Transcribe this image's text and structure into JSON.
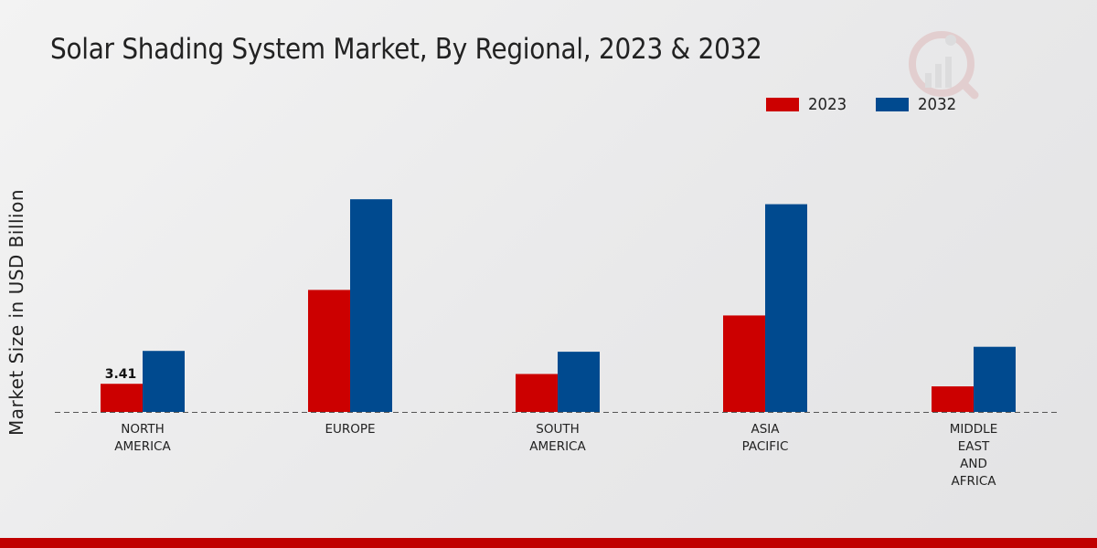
{
  "chart_data": {
    "type": "bar",
    "title": "Solar Shading System Market, By Regional, 2023 & 2032",
    "ylabel": "Market Size in USD Billion",
    "xlabel": "",
    "categories": [
      [
        "NORTH",
        "AMERICA"
      ],
      [
        "EUROPE"
      ],
      [
        "SOUTH",
        "AMERICA"
      ],
      [
        "ASIA",
        "PACIFIC"
      ],
      [
        "MIDDLE",
        "EAST",
        "AND",
        "AFRICA"
      ]
    ],
    "series": [
      {
        "name": "2023",
        "color": "#cc0000",
        "values": [
          3.41,
          14.8,
          4.6,
          11.7,
          3.1
        ]
      },
      {
        "name": "2032",
        "color": "#004a8f",
        "values": [
          7.4,
          25.8,
          7.3,
          25.2,
          7.9
        ]
      }
    ],
    "data_labels": [
      {
        "series": 0,
        "index": 0,
        "text": "3.41"
      }
    ],
    "ylim": [
      0,
      40
    ],
    "grid": false,
    "legend": "top-right"
  }
}
